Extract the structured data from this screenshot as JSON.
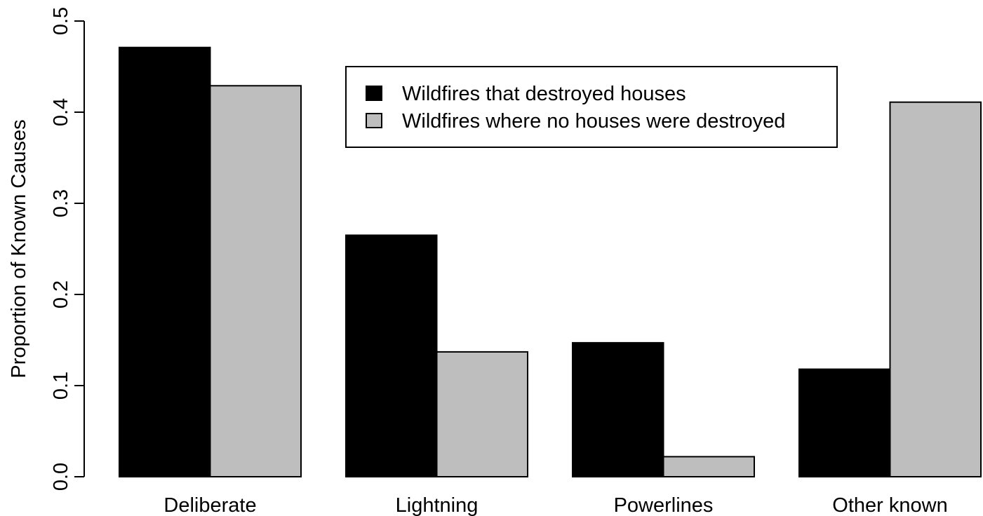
{
  "chart_data": {
    "type": "bar",
    "categories": [
      "Deliberate",
      "Lightning",
      "Powerlines",
      "Other known"
    ],
    "series": [
      {
        "name": "Wildfires that destroyed houses",
        "color": "#000000",
        "values": [
          0.471,
          0.265,
          0.147,
          0.118
        ]
      },
      {
        "name": "Wildfires where no houses were destroyed",
        "color": "#bebebe",
        "values": [
          0.429,
          0.137,
          0.022,
          0.411
        ]
      }
    ],
    "title": "",
    "xlabel": "",
    "ylabel": "Proportion of Known Causes",
    "ylim": [
      0,
      0.5
    ],
    "yticks": [
      "0.0",
      "0.1",
      "0.2",
      "0.3",
      "0.4",
      "0.5"
    ],
    "grid": false,
    "legend_position": "top-center"
  }
}
